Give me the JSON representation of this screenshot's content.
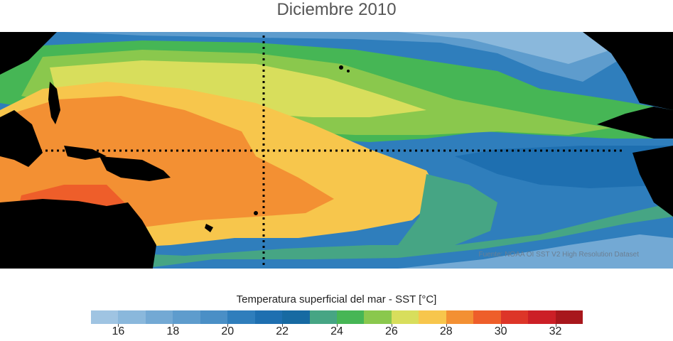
{
  "title": "Diciembre 2010",
  "credit": "Fuente: NOAA OI SST V2 High Resolution Dataset",
  "colorbar": {
    "label": "Temperatura superficial del mar - SST  [°C]",
    "ticks": [
      "16",
      "18",
      "20",
      "22",
      "24",
      "26",
      "28",
      "30",
      "32"
    ],
    "bins": [
      15,
      16,
      17,
      18,
      19,
      20,
      21,
      22,
      23,
      24,
      25,
      26,
      27,
      28,
      29,
      30,
      31,
      32,
      33
    ],
    "colors": [
      "#9fc4e2",
      "#8ab8dc",
      "#73a9d4",
      "#5e9ccd",
      "#4a8fc6",
      "#2f7ebc",
      "#1e6fb0",
      "#176aa2",
      "#46a584",
      "#46b655",
      "#8ac84d",
      "#d8de5c",
      "#f7c64c",
      "#f39033",
      "#ee5e2a",
      "#dd3528",
      "#cc1f26",
      "#a8171c"
    ]
  },
  "map": {
    "region": "Pacific Ocean",
    "land_color": "#000000",
    "gridlines": [
      "equator",
      "dateline"
    ]
  }
}
